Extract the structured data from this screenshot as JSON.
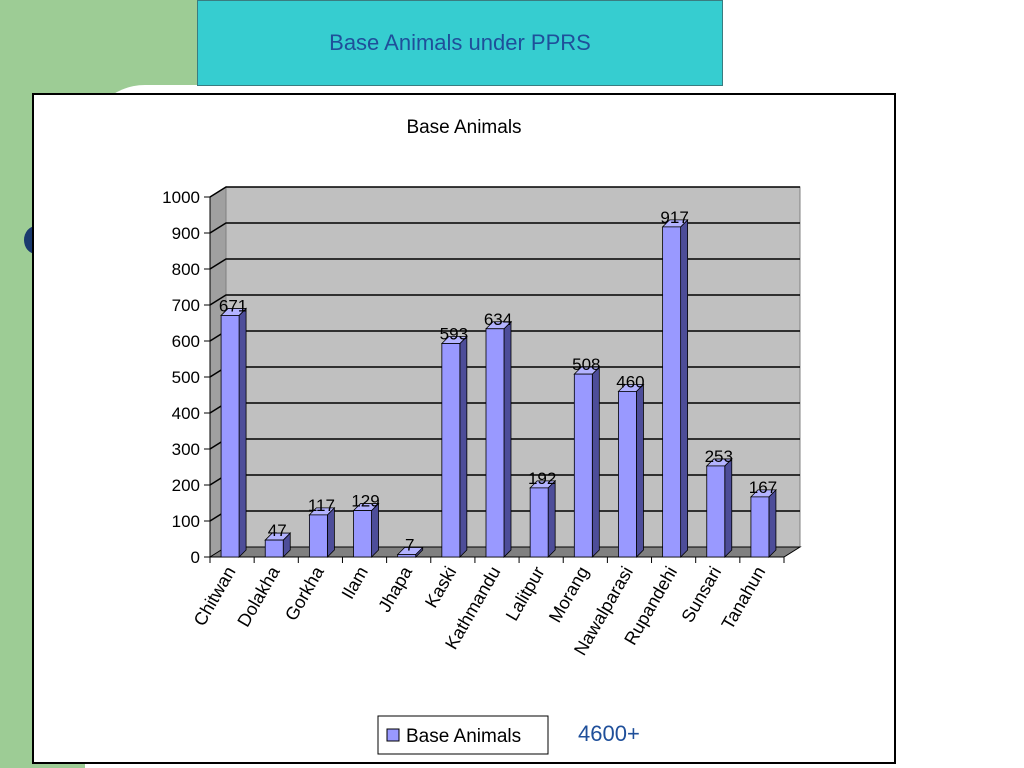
{
  "slide": {
    "title": "Base Animals under PPRS",
    "annotation": "4600+"
  },
  "colors": {
    "background": "#ffffff",
    "green_band": "#9dcc95",
    "title_box": "#36cdd0",
    "title_text": "#1f4f9a",
    "bar_front": "#9999ff",
    "bar_side": "#4d4d99",
    "bar_top": "#b3b3ff",
    "plot_wall": "#c0c0c0",
    "plot_floor": "#808080"
  },
  "chart_data": {
    "type": "bar",
    "style": "3d-column",
    "title": "Base Animals",
    "xlabel": "",
    "ylabel": "",
    "ylim": [
      0,
      1000
    ],
    "yticks": [
      0,
      100,
      200,
      300,
      400,
      500,
      600,
      700,
      800,
      900,
      1000
    ],
    "grid": true,
    "legend": "bottom",
    "categories": [
      "Chitwan",
      "Dolakha",
      "Gorkha",
      "Ilam",
      "Jhapa",
      "Kaski",
      "Kathmandu",
      "Lalitpur",
      "Morang",
      "Nawalparasi",
      "Rupandehi",
      "Sunsari",
      "Tanahun"
    ],
    "series": [
      {
        "name": "Base Animals",
        "values": [
          671,
          47,
          117,
          129,
          7,
          593,
          634,
          192,
          508,
          460,
          917,
          253,
          167
        ]
      }
    ]
  }
}
